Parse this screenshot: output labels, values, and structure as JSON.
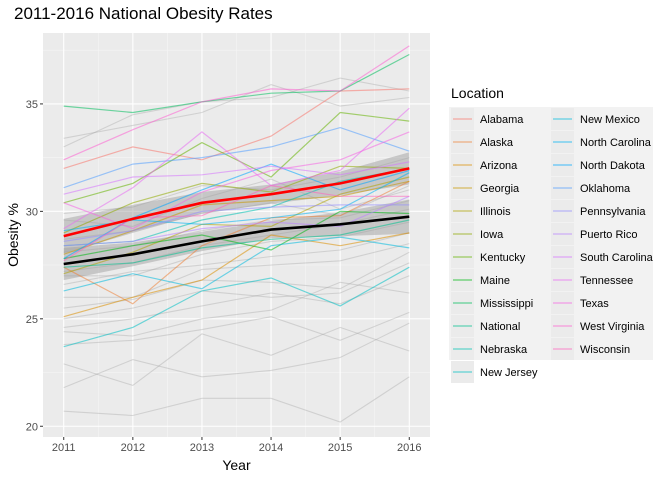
{
  "chart_data": {
    "type": "line",
    "title": "2011-2016 National Obesity Rates",
    "xlabel": "Year",
    "ylabel": "Obesity %",
    "x": [
      2011,
      2012,
      2013,
      2014,
      2015,
      2016
    ],
    "xlim": [
      2010.7,
      2016.3
    ],
    "ylim": [
      19.5,
      38.3
    ],
    "yticks": [
      20,
      25,
      30,
      35
    ],
    "grid": true,
    "legend_title": "Location",
    "legend_position": "right",
    "highlighted_series": [
      {
        "name": "Alabama",
        "color": "#F8766D",
        "values": [
          32.0,
          33.0,
          32.4,
          33.5,
          35.6,
          35.7
        ]
      },
      {
        "name": "Alaska",
        "color": "#EC8239",
        "values": [
          27.4,
          25.7,
          28.4,
          29.7,
          29.8,
          31.4
        ]
      },
      {
        "name": "Arizona",
        "color": "#DB8E00",
        "values": [
          25.1,
          26.0,
          26.8,
          28.9,
          28.4,
          29.0
        ]
      },
      {
        "name": "Georgia",
        "color": "#C79800",
        "values": [
          28.0,
          29.1,
          30.3,
          30.5,
          30.7,
          31.4
        ]
      },
      {
        "name": "Illinois",
        "color": "#AEA200",
        "values": [
          27.1,
          28.1,
          29.4,
          29.3,
          30.8,
          31.6
        ]
      },
      {
        "name": "Iowa",
        "color": "#8FAA00",
        "values": [
          29.0,
          30.4,
          31.3,
          30.9,
          32.1,
          32.0
        ]
      },
      {
        "name": "Kentucky",
        "color": "#64B200",
        "values": [
          30.4,
          31.3,
          33.2,
          31.6,
          34.6,
          34.2
        ]
      },
      {
        "name": "Maine",
        "color": "#00B813",
        "values": [
          27.8,
          28.4,
          28.9,
          28.2,
          30.0,
          29.9
        ]
      },
      {
        "name": "Mississippi",
        "color": "#00BD5C",
        "values": [
          34.9,
          34.6,
          35.1,
          35.5,
          35.6,
          37.3
        ]
      },
      {
        "name": "National",
        "color": "#00C08E",
        "values": [
          27.4,
          27.6,
          28.3,
          28.7,
          28.9,
          29.6
        ]
      },
      {
        "name": "Nebraska",
        "color": "#00C1B2",
        "values": [
          28.4,
          28.6,
          29.6,
          30.2,
          31.4,
          32.0
        ]
      },
      {
        "name": "New Jersey",
        "color": "#00BFC4",
        "values": [
          23.7,
          24.6,
          26.3,
          26.9,
          25.6,
          27.4
        ]
      },
      {
        "name": "New Mexico",
        "color": "#00BADE",
        "values": [
          26.3,
          27.1,
          26.4,
          28.4,
          28.8,
          28.3
        ]
      },
      {
        "name": "North Carolina",
        "color": "#00B2F3",
        "values": [
          29.1,
          29.6,
          29.4,
          29.7,
          30.1,
          31.8
        ]
      },
      {
        "name": "North Dakota",
        "color": "#00A6FF",
        "values": [
          27.8,
          29.7,
          31.0,
          32.2,
          31.0,
          31.9
        ]
      },
      {
        "name": "Oklahoma",
        "color": "#529EFF",
        "values": [
          31.1,
          32.2,
          32.5,
          33.0,
          33.9,
          32.8
        ]
      },
      {
        "name": "Pennsylvania",
        "color": "#9590FF",
        "values": [
          28.6,
          29.1,
          30.0,
          30.2,
          30.3,
          30.3
        ]
      },
      {
        "name": "Puerto Rico",
        "color": "#B983FF",
        "values": [
          28.4,
          28.6,
          29.2,
          29.5,
          29.3,
          30.7
        ]
      },
      {
        "name": "South Carolina",
        "color": "#D575FE",
        "values": [
          30.8,
          31.6,
          31.7,
          32.1,
          31.7,
          32.3
        ]
      },
      {
        "name": "Tennessee",
        "color": "#E76BF3",
        "values": [
          29.2,
          31.1,
          33.7,
          31.2,
          31.9,
          34.8
        ]
      },
      {
        "name": "Texas",
        "color": "#F564E3",
        "values": [
          30.4,
          29.2,
          30.9,
          31.9,
          32.4,
          33.7
        ]
      },
      {
        "name": "West Virginia",
        "color": "#FD61D1",
        "values": [
          32.4,
          33.8,
          35.1,
          35.7,
          35.6,
          37.7
        ]
      },
      {
        "name": "Wisconsin",
        "color": "#FF62BC",
        "values": [
          27.7,
          29.7,
          29.8,
          31.2,
          30.7,
          30.7
        ]
      }
    ],
    "background_series": [
      [
        20.7,
        20.5,
        21.3,
        21.3,
        20.2,
        22.3
      ],
      [
        21.8,
        23.1,
        22.3,
        22.6,
        23.2,
        24.8
      ],
      [
        22.9,
        21.9,
        24.3,
        23.3,
        24.6,
        23.5
      ],
      [
        23.8,
        24.0,
        24.5,
        25.1,
        24.0,
        25.3
      ],
      [
        24.4,
        24.2,
        25.0,
        25.4,
        26.7,
        26.2
      ],
      [
        24.6,
        25.0,
        25.6,
        26.2,
        25.7,
        27.0
      ],
      [
        25.0,
        25.5,
        26.3,
        26.0,
        26.2,
        27.6
      ],
      [
        25.5,
        25.9,
        26.8,
        26.7,
        26.4,
        28.1
      ],
      [
        26.0,
        26.0,
        27.3,
        27.5,
        27.7,
        28.5
      ],
      [
        26.6,
        27.2,
        27.5,
        27.9,
        28.2,
        29.0
      ],
      [
        27.0,
        27.0,
        28.0,
        28.6,
        28.8,
        29.5
      ],
      [
        27.2,
        27.6,
        28.4,
        28.9,
        29.4,
        30.1
      ],
      [
        28.1,
        28.4,
        29.1,
        29.6,
        29.7,
        30.5
      ],
      [
        28.7,
        29.1,
        29.9,
        30.4,
        29.8,
        31.2
      ],
      [
        29.6,
        29.3,
        30.6,
        31.5,
        30.1,
        31.0
      ],
      [
        29.9,
        30.2,
        31.2,
        31.0,
        31.6,
        32.5
      ],
      [
        33.4,
        34.0,
        34.6,
        35.9,
        34.9,
        35.3
      ],
      [
        33.0,
        34.5,
        35.1,
        35.3,
        36.2,
        35.6
      ]
    ],
    "trend_all": {
      "color": "#FF0000",
      "values": [
        28.85,
        29.65,
        30.4,
        30.8,
        31.3,
        32.0
      ],
      "lower": [
        28.05,
        29.0,
        29.9,
        30.35,
        30.75,
        31.25
      ],
      "upper": [
        29.65,
        30.3,
        30.9,
        31.25,
        31.85,
        32.75
      ]
    },
    "trend_other": {
      "color": "#000000",
      "values": [
        27.55,
        28.0,
        28.6,
        29.15,
        29.4,
        29.75
      ],
      "lower": [
        26.8,
        27.45,
        28.15,
        28.75,
        28.85,
        28.95
      ],
      "upper": [
        28.3,
        28.55,
        29.05,
        29.55,
        29.95,
        30.55
      ]
    }
  }
}
